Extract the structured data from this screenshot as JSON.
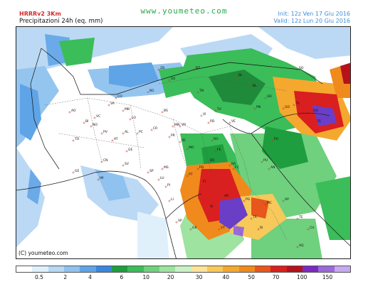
{
  "header": {
    "model": "HRRRv2 3Km",
    "product": "Precipitazioni 24h  (eq. mm)",
    "site": "www.youmeteo.com",
    "init": "Init: 12z Ven  17 Giu 2016",
    "valid": "Valid: 12z Lun  20 Giu 2016"
  },
  "map": {
    "credit": "(C) youmeteo.com",
    "city_labels": [
      "AO",
      "VC",
      "NO",
      "MB",
      "LO",
      "BG",
      "BS",
      "VR",
      "VI",
      "TV",
      "PD",
      "VE",
      "RO",
      "FE",
      "BO",
      "RA",
      "FC",
      "SO",
      "TN",
      "BZ",
      "SI",
      "GR",
      "AR",
      "PG",
      "TR",
      "RI",
      "MC",
      "AP",
      "SP",
      "MS",
      "LU",
      "PI",
      "LI",
      "GE",
      "SV",
      "IM",
      "CN",
      "AT",
      "AL",
      "PV",
      "TO",
      "BI",
      "CO",
      "VA",
      "PC",
      "PR",
      "RE",
      "MO",
      "PO",
      "FI",
      "PT",
      "VT",
      "UD",
      "PN",
      "GO",
      "TS",
      "CR",
      "MN",
      "BL",
      "AN",
      "PU",
      "TE",
      "CH",
      "AQ",
      "GO",
      "BL",
      "SP",
      "PU",
      "SO",
      "TS",
      "ZB",
      "GE"
    ],
    "precip_colors": {
      "light": "#b8d8f4",
      "medium": "#6aaae8",
      "green": "#3bbd5a",
      "dark_green": "#1f8a3a",
      "orange": "#f08a1c",
      "red": "#d91f1f",
      "purple": "#6b3ec7"
    }
  },
  "legend": {
    "colors": [
      "#ffffff",
      "#dff0fb",
      "#b8d8f4",
      "#8fc2ef",
      "#5fa4e6",
      "#3a86dc",
      "#1e9e3e",
      "#3bbd5a",
      "#6fd07e",
      "#9ee39f",
      "#c8f1c6",
      "#fbe39a",
      "#f7c95a",
      "#f5a82e",
      "#f08a1c",
      "#e8561b",
      "#d91f1f",
      "#b5121b",
      "#7a2bc0",
      "#9a6ad8",
      "#c7a9ee"
    ],
    "labels": [
      {
        "text": "0.5",
        "pos": 0.07
      },
      {
        "text": "2",
        "pos": 0.148
      },
      {
        "text": "4",
        "pos": 0.222
      },
      {
        "text": "6",
        "pos": 0.316
      },
      {
        "text": "10",
        "pos": 0.389
      },
      {
        "text": "20",
        "pos": 0.462
      },
      {
        "text": "30",
        "pos": 0.547
      },
      {
        "text": "40",
        "pos": 0.627
      },
      {
        "text": "50",
        "pos": 0.703
      },
      {
        "text": "70",
        "pos": 0.776
      },
      {
        "text": "100",
        "pos": 0.854
      },
      {
        "text": "150",
        "pos": 0.93
      }
    ]
  }
}
